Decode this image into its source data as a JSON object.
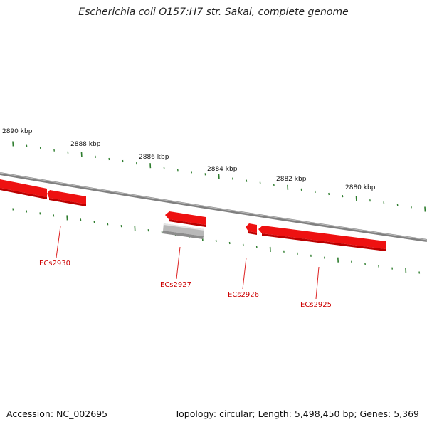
{
  "title": "Escherichia coli O157:H7 str. Sakai, complete genome",
  "footer": {
    "accession": "Accession: NC_002695",
    "summary": "Topology: circular; Length: 5,498,450 bp; Genes: 5,369"
  },
  "kbp_labels": [
    "2890 kbp",
    "2888 kbp",
    "2886 kbp",
    "2884 kbp",
    "2882 kbp",
    "2880 kbp"
  ],
  "gene_labels": [
    "ECs2930",
    "ECs2927",
    "ECs2926",
    "ECs2925"
  ],
  "colors": {
    "gene": "#ee1111",
    "gene_light": "#ff8888",
    "gene_dark": "#bb0000",
    "pseudo": "#b8b8b8",
    "backbone": "#808080",
    "tick": "#2e7d2e",
    "label_line": "#dd2222"
  }
}
